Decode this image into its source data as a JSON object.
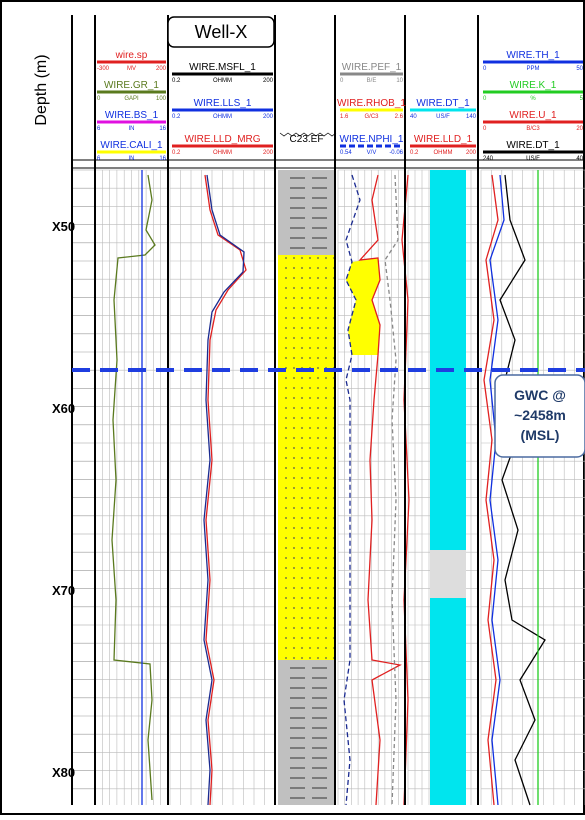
{
  "header": {
    "title": "Well-X"
  },
  "depth_axis": {
    "label": "Depth (m)",
    "labels": [
      "X50",
      "X60",
      "X70",
      "X80"
    ]
  },
  "tracks": [
    {
      "curves": [
        {
          "name": "wire.sp",
          "min": "-300",
          "unit": "MV",
          "max": "200"
        },
        {
          "name": "WIRE.GR_1",
          "min": "0",
          "unit": "GAPI",
          "max": "100"
        },
        {
          "name": "WIRE.BS_1",
          "min": "6",
          "unit": "IN",
          "max": "16"
        },
        {
          "name": "WIRE.CALI_1",
          "min": "6",
          "unit": "IN",
          "max": "16"
        }
      ]
    },
    {
      "curves": [
        {
          "name": "WIRE.MSFL_1",
          "min": "0.2",
          "unit": "OHMM",
          "max": "200"
        },
        {
          "name": "WIRE.LLS_1",
          "min": "0.2",
          "unit": "OHMM",
          "max": "200"
        },
        {
          "name": "WIRE.LLD_MRG",
          "min": "0.2",
          "unit": "OHMM",
          "max": "200"
        }
      ]
    },
    {
      "curves": [
        {
          "name": "C23.EF"
        }
      ]
    },
    {
      "curves": [
        {
          "name": "WIRE.PEF_1",
          "min": "0",
          "unit": "B/E",
          "max": "10"
        },
        {
          "name": "WIRE.RHOB_1",
          "min": "1.6",
          "unit": "G/C3",
          "max": "2.6"
        },
        {
          "name": "WIRE.NPHI_1",
          "min": "0.54",
          "unit": "V/V",
          "max": "-0.06"
        }
      ]
    },
    {
      "curves": [
        {
          "name": "WIRE.DT_1",
          "min": "40",
          "unit": "US/F",
          "max": "140"
        },
        {
          "name": "WIRE.LLD_1",
          "min": "0.2",
          "unit": "OHMM",
          "max": "200"
        }
      ]
    },
    {
      "curves": [
        {
          "name": "WIRE.TH_1",
          "min": "0",
          "unit": "PPM",
          "max": "50"
        },
        {
          "name": "WIRE.K_1",
          "min": "0",
          "unit": "%",
          "max": "5"
        },
        {
          "name": "WIRE.U_1",
          "min": "0",
          "unit": "B/C3",
          "max": "20"
        },
        {
          "name": "WIRE.DT_1",
          "min": "240",
          "unit": "US/F",
          "max": "40"
        }
      ]
    }
  ],
  "annotation": {
    "lines": [
      "GWC @",
      "~2458m",
      "(MSL)"
    ]
  }
}
